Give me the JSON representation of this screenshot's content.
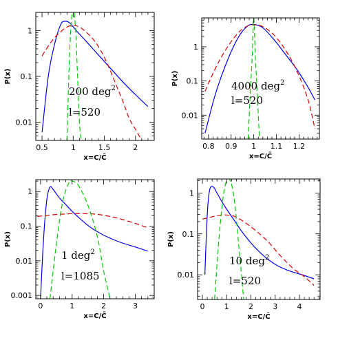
{
  "chart_data": [
    {
      "type": "line",
      "xlabel": "x=C/C̄",
      "ylabel": "P(x)",
      "xscale": "linear",
      "yscale": "log",
      "xlim": [
        0.4,
        2.3
      ],
      "ylim": [
        0.004,
        2.5
      ],
      "xticks": [
        0.5,
        1,
        1.5,
        2
      ],
      "xticklabels": [
        "0.5",
        "1",
        "1.5",
        "2"
      ],
      "yticks": [
        1,
        0.1,
        0.01
      ],
      "yticklabels": [
        "1",
        "0.1",
        "0.01"
      ],
      "annotation": {
        "area": "200 deg",
        "area_exp": "2",
        "ell": "l=520"
      },
      "series": [
        {
          "color": "#0000ee",
          "style": "solid",
          "x": [
            0.5,
            0.6,
            0.7,
            0.8,
            0.87,
            0.95,
            1.05,
            1.2,
            1.4,
            1.6,
            1.8,
            2.0,
            2.2
          ],
          "y": [
            0.006,
            0.1,
            0.5,
            1.35,
            1.6,
            1.45,
            1.0,
            0.6,
            0.3,
            0.15,
            0.075,
            0.04,
            0.022
          ]
        },
        {
          "color": "#dd0000",
          "style": "dashed",
          "x": [
            0.5,
            0.6,
            0.7,
            0.8,
            0.9,
            1.0,
            1.1,
            1.2,
            1.3,
            1.4,
            1.5,
            1.6,
            1.7,
            1.8,
            1.9,
            2.0,
            2.1
          ],
          "y": [
            0.28,
            0.46,
            0.7,
            0.95,
            1.2,
            1.3,
            1.2,
            0.95,
            0.7,
            0.46,
            0.26,
            0.13,
            0.06,
            0.028,
            0.012,
            0.007,
            0.004
          ]
        },
        {
          "color": "#00cc00",
          "style": "dashed",
          "x": [
            0.9,
            0.93,
            0.96,
            1.0,
            1.04,
            1.07,
            1.1,
            1.13
          ],
          "y": [
            0.004,
            0.1,
            1.0,
            3.0,
            1.0,
            0.1,
            0.01,
            0.004
          ]
        }
      ]
    },
    {
      "type": "line",
      "xlabel": "x=C/C̄",
      "ylabel": "P(x)",
      "xscale": "linear",
      "yscale": "log",
      "xlim": [
        0.77,
        1.29
      ],
      "ylim": [
        0.002,
        7
      ],
      "xticks": [
        0.8,
        0.9,
        1,
        1.1,
        1.2
      ],
      "xticklabels": [
        "0.8",
        "0.9",
        "1",
        "1.1",
        "1.2"
      ],
      "yticks": [
        1,
        0.1,
        0.01
      ],
      "yticklabels": [
        "1",
        "0.1",
        "0.01"
      ],
      "annotation": {
        "area": "4000 deg",
        "area_exp": "2",
        "ell": "l=520"
      },
      "series": [
        {
          "color": "#0000ee",
          "style": "solid",
          "x": [
            0.785,
            0.83,
            0.88,
            0.93,
            0.97,
            1.0,
            1.04,
            1.09,
            1.14,
            1.19,
            1.24,
            1.27
          ],
          "y": [
            0.003,
            0.04,
            0.35,
            1.8,
            3.9,
            4.5,
            3.6,
            1.6,
            0.6,
            0.22,
            0.065,
            0.028
          ]
        },
        {
          "color": "#dd0000",
          "style": "dashed",
          "x": [
            0.785,
            0.83,
            0.88,
            0.93,
            0.97,
            1.0,
            1.04,
            1.09,
            1.14,
            1.19,
            1.24,
            1.27
          ],
          "y": [
            0.05,
            0.23,
            0.9,
            2.5,
            4.0,
            4.4,
            3.9,
            2.2,
            0.8,
            0.2,
            0.028,
            0.004
          ]
        },
        {
          "color": "#00cc00",
          "style": "dashed",
          "x": [
            0.975,
            0.985,
            0.993,
            1.0,
            1.007,
            1.015,
            1.025
          ],
          "y": [
            0.002,
            0.05,
            0.5,
            7,
            0.5,
            0.05,
            0.002
          ]
        }
      ]
    },
    {
      "type": "line",
      "xlabel": "x=C/C̄",
      "ylabel": "P(x)",
      "xscale": "linear",
      "yscale": "log",
      "xlim": [
        -0.15,
        3.6
      ],
      "ylim": [
        0.0008,
        2.2
      ],
      "xticks": [
        0,
        1,
        2,
        3
      ],
      "xticklabels": [
        "0",
        "1",
        "2",
        "3"
      ],
      "yticks": [
        1,
        0.1,
        0.01,
        0.001
      ],
      "yticklabels": [
        "1",
        "0.1",
        "0.01",
        "0.001"
      ],
      "annotation": {
        "area": "1 deg",
        "area_exp": "2",
        "ell": "l=1085"
      },
      "series": [
        {
          "color": "#0000ee",
          "style": "solid",
          "x": [
            0.0,
            0.1,
            0.2,
            0.3,
            0.4,
            0.6,
            0.8,
            1.0,
            1.3,
            1.6,
            2.0,
            2.5,
            3.0,
            3.4
          ],
          "y": [
            0.0008,
            0.05,
            0.6,
            1.35,
            1.15,
            0.65,
            0.42,
            0.27,
            0.15,
            0.09,
            0.055,
            0.035,
            0.025,
            0.019
          ]
        },
        {
          "color": "#dd0000",
          "style": "dashed",
          "x": [
            -0.1,
            0.3,
            0.6,
            1.0,
            1.4,
            1.8,
            2.2,
            2.6,
            3.0,
            3.4
          ],
          "y": [
            0.19,
            0.21,
            0.22,
            0.23,
            0.23,
            0.22,
            0.19,
            0.155,
            0.12,
            0.09
          ]
        },
        {
          "color": "#00cc00",
          "style": "dashed",
          "x": [
            0.3,
            0.5,
            0.7,
            0.9,
            1.0,
            1.2,
            1.5,
            1.8,
            2.0,
            2.2
          ],
          "y": [
            0.0008,
            0.03,
            0.5,
            1.8,
            2.0,
            1.5,
            0.4,
            0.05,
            0.005,
            0.0008
          ]
        }
      ]
    },
    {
      "type": "line",
      "xlabel": "x=C/C̄",
      "ylabel": "P(x)",
      "xscale": "linear",
      "yscale": "log",
      "xlim": [
        -0.2,
        4.85
      ],
      "ylim": [
        0.0025,
        2.2
      ],
      "xticks": [
        0,
        1,
        2,
        3,
        4
      ],
      "xticklabels": [
        "0",
        "1",
        "2",
        "3",
        "4"
      ],
      "yticks": [
        1,
        0.1,
        0.01
      ],
      "yticklabels": [
        "1",
        "0.1",
        "0.01"
      ],
      "annotation": {
        "area": "10 deg",
        "area_exp": "2",
        "ell": "l=520"
      },
      "series": [
        {
          "color": "#0000ee",
          "style": "solid",
          "x": [
            0.1,
            0.2,
            0.3,
            0.45,
            0.6,
            0.8,
            1.0,
            1.3,
            1.6,
            2.0,
            2.5,
            3.0,
            3.5,
            4.0,
            4.6
          ],
          "y": [
            0.01,
            0.3,
            1.2,
            1.4,
            1.0,
            0.62,
            0.4,
            0.22,
            0.12,
            0.06,
            0.03,
            0.018,
            0.013,
            0.0105,
            0.008
          ]
        },
        {
          "color": "#dd0000",
          "style": "dashed",
          "x": [
            0.0,
            0.5,
            0.8,
            1.0,
            1.3,
            1.7,
            2.2,
            2.7,
            3.2,
            3.7,
            4.2,
            4.6
          ],
          "y": [
            0.23,
            0.27,
            0.29,
            0.29,
            0.27,
            0.2,
            0.12,
            0.065,
            0.03,
            0.015,
            0.009,
            0.0055
          ]
        },
        {
          "color": "#00cc00",
          "style": "dashed",
          "x": [
            0.5,
            0.7,
            0.9,
            1.1,
            1.3,
            1.5,
            1.7
          ],
          "y": [
            0.0025,
            0.1,
            1.2,
            2.2,
            0.8,
            0.05,
            0.002
          ]
        }
      ]
    }
  ]
}
